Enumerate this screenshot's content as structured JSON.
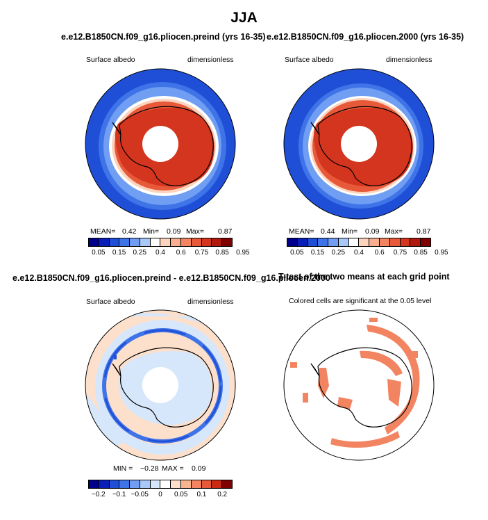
{
  "figure": {
    "title": "JJA"
  },
  "panels": [
    {
      "title": "e.e12.B1850CN.f09_g16.pliocen.preind (yrs 16-35)",
      "left_label": "Surface albedo",
      "right_label": "dimensionless",
      "stats": {
        "mean_label": "MEAN=",
        "mean": "0.42",
        "min_label": "Min=",
        "min": "0.09",
        "max_label": "Max=",
        "max": "0.87"
      }
    },
    {
      "title": "e.e12.B1850CN.f09_g16.pliocen.2000 (yrs 16-35)",
      "left_label": "Surface albedo",
      "right_label": "dimensionless",
      "stats": {
        "mean_label": "MEAN=",
        "mean": "0.44",
        "min_label": "Min=",
        "min": "0.09",
        "max_label": "Max=",
        "max": "0.87"
      }
    },
    {
      "title": "e.e12.B1850CN.f09_g16.pliocen.preind - e.e12.B1850CN.f09_g16.pliocen.2000",
      "left_label": "Surface albedo",
      "right_label": "dimensionless",
      "stats": {
        "min_label": "MIN =",
        "min": "−0.28",
        "max_label": "MAX =",
        "max": "0.09"
      }
    },
    {
      "title": "T-test of the two means at each grid point",
      "subtitle": "Colored cells are significant at the 0.05 level"
    }
  ],
  "colorbars": {
    "absolute": {
      "colors": [
        "#00008b",
        "#0a1fb8",
        "#1f4fd6",
        "#3f73e8",
        "#6f9ef2",
        "#a9c8f7",
        "#ffffff",
        "#fcd3bd",
        "#f8ae8f",
        "#f28461",
        "#e8593a",
        "#d4351e",
        "#b01a0e",
        "#7f0000"
      ],
      "tick_labels": [
        "0.05",
        "0.15",
        "0.25",
        "0.4",
        "0.6",
        "0.75",
        "0.85",
        "0.95"
      ]
    },
    "difference": {
      "colors": [
        "#00008b",
        "#0a1fb8",
        "#1f4fd6",
        "#3f73e8",
        "#6f9ef2",
        "#a9c8f7",
        "#d6e6fb",
        "#ffffff",
        "#fde0cc",
        "#f8b48f",
        "#f28461",
        "#e8593a",
        "#c92a14",
        "#7f0000"
      ],
      "tick_labels": [
        "−0.2",
        "−0.1",
        "−0.05",
        "0",
        "0.05",
        "0.1",
        "0.2"
      ]
    }
  },
  "chart_data": [
    {
      "type": "heatmap",
      "title": "e.e12.B1850CN.f09_g16.pliocen.preind (yrs 16-35)",
      "projection": "south polar stereographic",
      "variable": "Surface albedo",
      "units": "dimensionless",
      "mean": 0.42,
      "min": 0.09,
      "max": 0.87,
      "levels": [
        0.05,
        0.1,
        0.15,
        0.2,
        0.25,
        0.3,
        0.4,
        0.5,
        0.6,
        0.7,
        0.75,
        0.8,
        0.85,
        0.9,
        0.95
      ]
    },
    {
      "type": "heatmap",
      "title": "e.e12.B1850CN.f09_g16.pliocen.2000 (yrs 16-35)",
      "projection": "south polar stereographic",
      "variable": "Surface albedo",
      "units": "dimensionless",
      "mean": 0.44,
      "min": 0.09,
      "max": 0.87,
      "levels": [
        0.05,
        0.1,
        0.15,
        0.2,
        0.25,
        0.3,
        0.4,
        0.5,
        0.6,
        0.7,
        0.75,
        0.8,
        0.85,
        0.9,
        0.95
      ]
    },
    {
      "type": "heatmap",
      "title": "e.e12.B1850CN.f09_g16.pliocen.preind - e.e12.B1850CN.f09_g16.pliocen.2000",
      "projection": "south polar stereographic",
      "variable": "Surface albedo",
      "units": "dimensionless",
      "min": -0.28,
      "max": 0.09,
      "levels": [
        -0.2,
        -0.15,
        -0.1,
        -0.075,
        -0.05,
        -0.025,
        0,
        0.025,
        0.05,
        0.075,
        0.1,
        0.15,
        0.2
      ]
    },
    {
      "type": "heatmap",
      "title": "T-test of the two means at each grid point",
      "projection": "south polar stereographic",
      "significance_level": 0.05
    }
  ]
}
